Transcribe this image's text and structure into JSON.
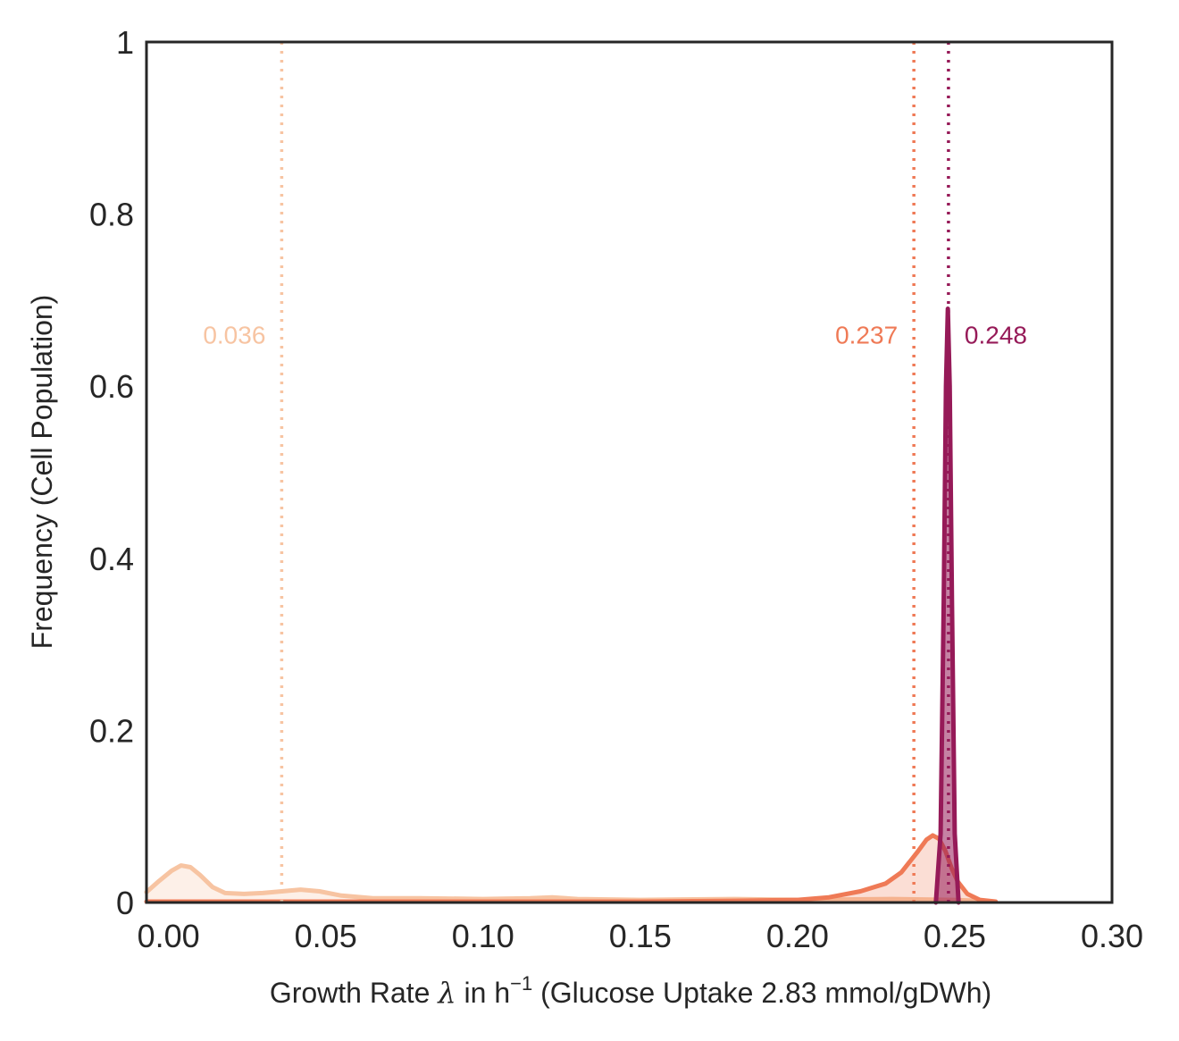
{
  "chart_data": {
    "type": "line",
    "subtype": "kde-density-with-mean-lines",
    "xlabel": {
      "prefix": "Growth Rate ",
      "symbol": "λ",
      "middle": " in h",
      "superscript": "−1",
      "suffix": " (Glucose Uptake 2.83 mmol/gDWh)"
    },
    "ylabel": "Frequency (Cell Population)",
    "xlim": [
      -0.007,
      0.3
    ],
    "ylim": [
      0,
      1
    ],
    "xticks": [
      {
        "value": 0.0,
        "label": "0.00"
      },
      {
        "value": 0.05,
        "label": "0.05"
      },
      {
        "value": 0.1,
        "label": "0.10"
      },
      {
        "value": 0.15,
        "label": "0.15"
      },
      {
        "value": 0.2,
        "label": "0.20"
      },
      {
        "value": 0.25,
        "label": "0.25"
      },
      {
        "value": 0.3,
        "label": "0.30"
      }
    ],
    "yticks": [
      {
        "value": 0,
        "label": "0"
      },
      {
        "value": 0.2,
        "label": "0.2"
      },
      {
        "value": 0.4,
        "label": "0.4"
      },
      {
        "value": 0.6,
        "label": "0.6"
      },
      {
        "value": 0.8,
        "label": "0.8"
      },
      {
        "value": 1.0,
        "label": "1"
      }
    ],
    "grid": false,
    "series": [
      {
        "color": "#f7c4a2",
        "fill_opacity": 0.25,
        "mean": 0.036,
        "mean_label": "0.036",
        "label_side": "left",
        "points": [
          [
            -0.007,
            0.012
          ],
          [
            -0.003,
            0.025
          ],
          [
            0.001,
            0.037
          ],
          [
            0.004,
            0.043
          ],
          [
            0.007,
            0.041
          ],
          [
            0.01,
            0.032
          ],
          [
            0.014,
            0.018
          ],
          [
            0.018,
            0.011
          ],
          [
            0.024,
            0.01
          ],
          [
            0.03,
            0.011
          ],
          [
            0.036,
            0.013
          ],
          [
            0.042,
            0.015
          ],
          [
            0.048,
            0.013
          ],
          [
            0.055,
            0.008
          ],
          [
            0.065,
            0.005
          ],
          [
            0.08,
            0.005
          ],
          [
            0.1,
            0.004
          ],
          [
            0.115,
            0.005
          ],
          [
            0.122,
            0.006
          ],
          [
            0.13,
            0.004
          ],
          [
            0.15,
            0.003
          ],
          [
            0.18,
            0.004
          ],
          [
            0.2,
            0.003
          ],
          [
            0.23,
            0.004
          ],
          [
            0.25,
            0.003
          ],
          [
            0.263,
            0.001
          ]
        ]
      },
      {
        "color": "#ef7a56",
        "fill_opacity": 0.25,
        "mean": 0.237,
        "mean_label": "0.237",
        "label_side": "left",
        "points": [
          [
            -0.007,
            0.001
          ],
          [
            0.05,
            0.001
          ],
          [
            0.1,
            0.001
          ],
          [
            0.15,
            0.001
          ],
          [
            0.18,
            0.002
          ],
          [
            0.2,
            0.003
          ],
          [
            0.21,
            0.006
          ],
          [
            0.22,
            0.013
          ],
          [
            0.228,
            0.022
          ],
          [
            0.233,
            0.035
          ],
          [
            0.238,
            0.058
          ],
          [
            0.241,
            0.073
          ],
          [
            0.243,
            0.078
          ],
          [
            0.245,
            0.074
          ],
          [
            0.247,
            0.06
          ],
          [
            0.249,
            0.04
          ],
          [
            0.251,
            0.024
          ],
          [
            0.254,
            0.01
          ],
          [
            0.258,
            0.003
          ],
          [
            0.263,
            0.001
          ]
        ]
      },
      {
        "color": "#961a58",
        "fill_opacity": 0.55,
        "mean": 0.248,
        "mean_label": "0.248",
        "label_side": "right",
        "points": [
          [
            0.244,
            0.0
          ],
          [
            0.2455,
            0.08
          ],
          [
            0.2465,
            0.35
          ],
          [
            0.2472,
            0.6
          ],
          [
            0.2478,
            0.69
          ],
          [
            0.2484,
            0.6
          ],
          [
            0.2491,
            0.35
          ],
          [
            0.25,
            0.08
          ],
          [
            0.2512,
            0.0
          ]
        ]
      }
    ],
    "mean_label_y": 0.66
  }
}
